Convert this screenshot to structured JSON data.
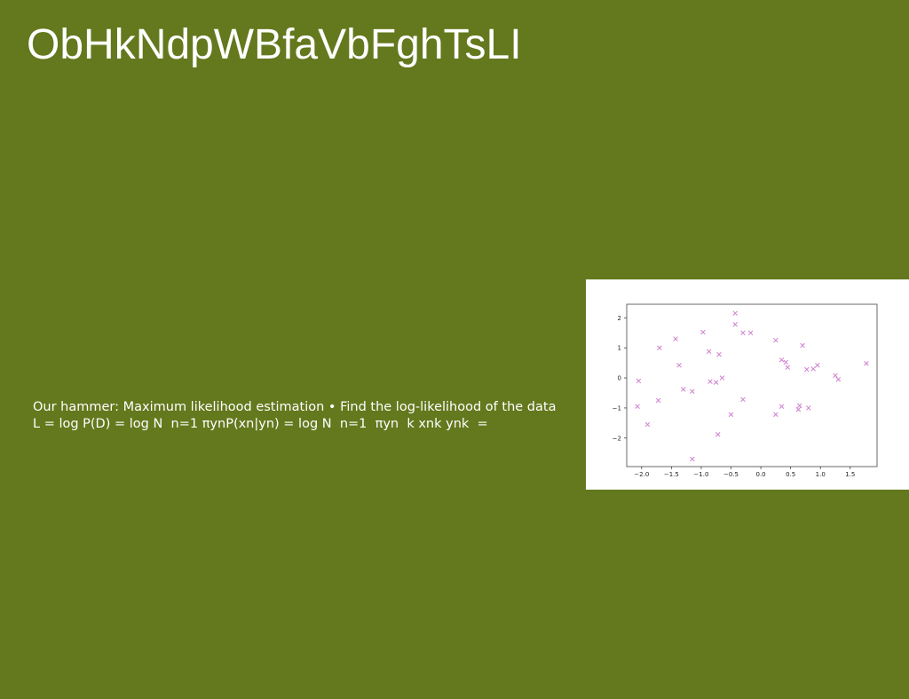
{
  "slide": {
    "title": "ObHkNdpWBfaVbFghTsLI",
    "body_text": "Our hammer: Maximum likelihood estimation • Find the log-likelihood of the data L = log P(D) = log N ￼ n=1 πynP(xn|yn) = log N ￼ n=1 ￼ πyn ￼ k ￼xnk ynk ￼ ="
  },
  "colors": {
    "background": "#64781d",
    "text": "#ffffff",
    "figure_background": "#ffffff",
    "marker": "#cf7fd0",
    "axis": "#444444"
  },
  "chart_data": {
    "type": "scatter",
    "marker": "x",
    "title": "",
    "xlabel": "",
    "ylabel": "",
    "xlim": [
      -2.25,
      1.95
    ],
    "ylim": [
      -2.95,
      2.45
    ],
    "x_ticks": [
      -2.0,
      -1.5,
      -1.0,
      -0.5,
      0.0,
      0.5,
      1.0,
      1.5
    ],
    "x_tick_labels": [
      "−2.0",
      "−1.5",
      "−1.0",
      "−0.5",
      "0.0",
      "0.5",
      "1.0",
      "1.5"
    ],
    "y_ticks": [
      2,
      1,
      0,
      -1,
      -2
    ],
    "y_tick_labels": [
      "2",
      "1",
      "0",
      "−1",
      "−2"
    ],
    "grid": false,
    "points": [
      {
        "x": -2.05,
        "y": -0.1
      },
      {
        "x": -2.07,
        "y": -0.95
      },
      {
        "x": -1.9,
        "y": -1.55
      },
      {
        "x": -1.7,
        "y": 1.0
      },
      {
        "x": -1.72,
        "y": -0.75
      },
      {
        "x": -1.43,
        "y": 1.3
      },
      {
        "x": -1.37,
        "y": 0.42
      },
      {
        "x": -1.3,
        "y": -0.38
      },
      {
        "x": -1.15,
        "y": -0.45
      },
      {
        "x": -0.97,
        "y": 1.52
      },
      {
        "x": -0.87,
        "y": 0.88
      },
      {
        "x": -0.85,
        "y": -0.12
      },
      {
        "x": -0.75,
        "y": -0.15
      },
      {
        "x": -0.7,
        "y": 0.78
      },
      {
        "x": -0.65,
        "y": 0.0
      },
      {
        "x": -0.72,
        "y": -1.88
      },
      {
        "x": -1.15,
        "y": -2.7
      },
      {
        "x": -0.5,
        "y": -1.22
      },
      {
        "x": -0.43,
        "y": 2.15
      },
      {
        "x": -0.43,
        "y": 1.78
      },
      {
        "x": -0.3,
        "y": 1.5
      },
      {
        "x": -0.3,
        "y": -0.72
      },
      {
        "x": -0.17,
        "y": 1.5
      },
      {
        "x": 0.25,
        "y": 1.25
      },
      {
        "x": 0.25,
        "y": -1.22
      },
      {
        "x": 0.35,
        "y": 0.6
      },
      {
        "x": 0.35,
        "y": -0.95
      },
      {
        "x": 0.42,
        "y": 0.52
      },
      {
        "x": 0.45,
        "y": 0.35
      },
      {
        "x": 0.63,
        "y": -1.05
      },
      {
        "x": 0.65,
        "y": -0.92
      },
      {
        "x": 0.7,
        "y": 1.08
      },
      {
        "x": 0.77,
        "y": 0.28
      },
      {
        "x": 0.8,
        "y": -1.0
      },
      {
        "x": 0.88,
        "y": 0.3
      },
      {
        "x": 0.95,
        "y": 0.42
      },
      {
        "x": 1.25,
        "y": 0.08
      },
      {
        "x": 1.3,
        "y": -0.05
      },
      {
        "x": 1.77,
        "y": 0.48
      }
    ]
  }
}
